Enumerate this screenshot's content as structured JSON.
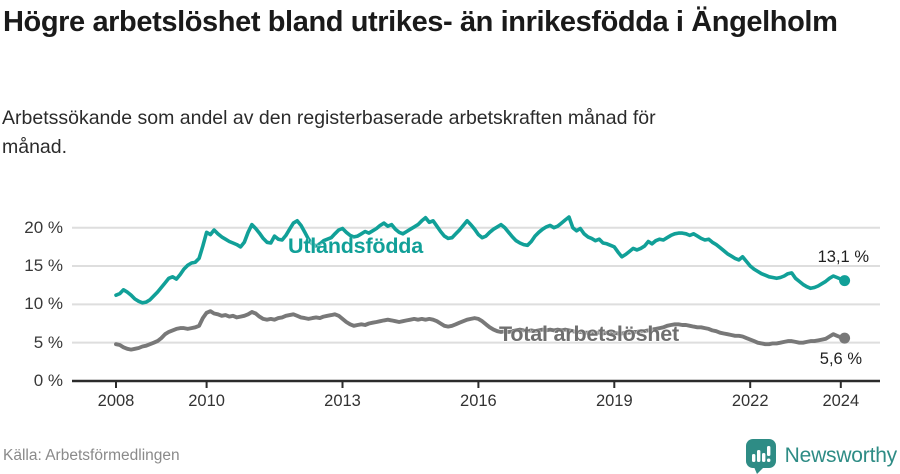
{
  "header": {
    "title": "Högre arbetslöshet bland utrikes- än inrikesfödda i Ängelholm",
    "subtitle": "Arbetssökande som andel av den registerbaserade arbetskraften månad för månad."
  },
  "footer": {
    "source": "Källa: Arbetsförmedlingen",
    "brand": "Newsworthy"
  },
  "colors": {
    "accent_teal": "#11a098",
    "line_gray": "#787878",
    "series_label_gray": "#6f6f6f",
    "brand_teal": "#2e8c85",
    "grid": "#dedede",
    "axis": "#2b2b2b",
    "end_label_text": "#1f1f1f"
  },
  "chart_data": {
    "type": "line",
    "x_start_year": 2008,
    "x_interval": "month",
    "x_end_label": "2024",
    "grid": "horizontal",
    "legend_position": "inline-labels",
    "ylim": [
      0,
      22.5
    ],
    "y_tick_suffix": " %",
    "x_ticks": [
      {
        "year": 2008,
        "label": "2008"
      },
      {
        "year": 2010,
        "label": "2010"
      },
      {
        "year": 2013,
        "label": "2013"
      },
      {
        "year": 2016,
        "label": "2016"
      },
      {
        "year": 2019,
        "label": "2019"
      },
      {
        "year": 2022,
        "label": "2022"
      },
      {
        "year": 2024,
        "label": "2024"
      }
    ],
    "y_ticks": [
      {
        "value": 0,
        "label": "0 %"
      },
      {
        "value": 5,
        "label": "5 %"
      },
      {
        "value": 10,
        "label": "10 %"
      },
      {
        "value": 15,
        "label": "15 %"
      },
      {
        "value": 20,
        "label": "20 %"
      }
    ],
    "series": [
      {
        "name": "Utlandsfödda",
        "color": "#11a098",
        "end_label": "13,1 %",
        "latest_value": 13.1,
        "values": [
          11.2,
          11.4,
          11.9,
          11.6,
          11.2,
          10.7,
          10.4,
          10.2,
          10.3,
          10.6,
          11.1,
          11.6,
          12.2,
          12.8,
          13.4,
          13.6,
          13.3,
          13.9,
          14.6,
          15.1,
          15.4,
          15.5,
          16.0,
          17.6,
          19.4,
          19.1,
          19.7,
          19.2,
          18.8,
          18.5,
          18.2,
          18.0,
          17.8,
          17.5,
          18.1,
          19.4,
          20.4,
          19.9,
          19.3,
          18.6,
          18.1,
          18.0,
          18.9,
          18.5,
          18.4,
          19.0,
          19.8,
          20.6,
          20.9,
          20.3,
          19.4,
          18.5,
          17.9,
          17.6,
          17.9,
          18.3,
          18.5,
          18.7,
          19.2,
          19.7,
          19.9,
          19.4,
          19.0,
          18.8,
          18.9,
          19.2,
          19.5,
          19.3,
          19.6,
          19.9,
          20.3,
          20.6,
          20.2,
          20.4,
          19.8,
          19.4,
          19.2,
          19.5,
          19.8,
          20.1,
          20.4,
          20.9,
          21.3,
          20.7,
          20.9,
          20.2,
          19.5,
          18.9,
          18.6,
          18.7,
          19.2,
          19.7,
          20.3,
          20.9,
          20.4,
          19.8,
          19.1,
          18.7,
          18.9,
          19.4,
          19.8,
          20.1,
          20.4,
          20.0,
          19.4,
          18.8,
          18.3,
          18.0,
          17.8,
          17.7,
          18.2,
          18.9,
          19.4,
          19.8,
          20.1,
          20.3,
          20.0,
          20.2,
          20.6,
          21.0,
          21.4,
          20.0,
          19.6,
          19.9,
          19.2,
          18.8,
          18.6,
          18.3,
          18.5,
          18.0,
          17.9,
          17.7,
          17.5,
          16.8,
          16.2,
          16.5,
          16.9,
          17.3,
          17.1,
          17.3,
          17.6,
          18.2,
          17.9,
          18.3,
          18.5,
          18.4,
          18.7,
          19.0,
          19.2,
          19.3,
          19.3,
          19.2,
          19.0,
          19.2,
          18.9,
          18.6,
          18.4,
          18.5,
          18.1,
          17.8,
          17.4,
          17.0,
          16.6,
          16.3,
          16.0,
          15.8,
          16.2,
          15.6,
          15.0,
          14.6,
          14.3,
          14.0,
          13.8,
          13.6,
          13.5,
          13.4,
          13.5,
          13.7,
          14.0,
          14.1,
          13.4,
          13.0,
          12.6,
          12.3,
          12.1,
          12.2,
          12.4,
          12.7,
          13.0,
          13.4,
          13.7,
          13.5,
          13.3,
          13.1
        ]
      },
      {
        "name": "Total arbetslöshet",
        "color": "#787878",
        "end_label": "5,6 %",
        "latest_value": 5.6,
        "values": [
          4.8,
          4.7,
          4.4,
          4.2,
          4.1,
          4.2,
          4.3,
          4.5,
          4.6,
          4.8,
          5.0,
          5.2,
          5.6,
          6.1,
          6.4,
          6.6,
          6.8,
          6.9,
          6.9,
          6.8,
          6.9,
          7.0,
          7.2,
          8.2,
          8.9,
          9.1,
          8.8,
          8.7,
          8.5,
          8.6,
          8.4,
          8.5,
          8.3,
          8.4,
          8.5,
          8.7,
          9.0,
          8.8,
          8.4,
          8.1,
          8.0,
          8.1,
          8.0,
          8.2,
          8.3,
          8.5,
          8.6,
          8.7,
          8.5,
          8.3,
          8.2,
          8.1,
          8.2,
          8.3,
          8.2,
          8.4,
          8.5,
          8.6,
          8.7,
          8.5,
          8.1,
          7.7,
          7.4,
          7.2,
          7.3,
          7.4,
          7.3,
          7.5,
          7.6,
          7.7,
          7.8,
          7.9,
          8.0,
          7.9,
          7.8,
          7.7,
          7.8,
          7.9,
          8.0,
          8.1,
          8.0,
          8.1,
          8.0,
          8.1,
          8.0,
          7.8,
          7.5,
          7.2,
          7.1,
          7.2,
          7.4,
          7.6,
          7.8,
          8.0,
          8.1,
          8.2,
          8.1,
          7.8,
          7.4,
          7.0,
          6.7,
          6.5,
          6.4,
          6.5,
          6.4,
          6.5,
          6.6,
          6.7,
          6.6,
          6.5,
          6.6,
          6.5,
          6.6,
          6.7,
          6.6,
          6.7,
          6.6,
          6.7,
          6.6,
          6.7,
          6.6,
          6.5,
          6.4,
          6.4,
          6.3,
          6.3,
          6.4,
          6.3,
          6.3,
          6.2,
          6.3,
          6.4,
          6.3,
          6.2,
          6.2,
          6.3,
          6.3,
          6.4,
          6.4,
          6.5,
          6.5,
          6.6,
          6.7,
          6.8,
          6.9,
          7.0,
          7.2,
          7.3,
          7.4,
          7.4,
          7.3,
          7.3,
          7.2,
          7.1,
          7.0,
          7.0,
          6.9,
          6.8,
          6.6,
          6.5,
          6.3,
          6.2,
          6.1,
          6.0,
          5.9,
          5.9,
          5.8,
          5.6,
          5.4,
          5.2,
          5.0,
          4.9,
          4.8,
          4.8,
          4.9,
          4.9,
          5.0,
          5.1,
          5.2,
          5.2,
          5.1,
          5.0,
          5.0,
          5.1,
          5.2,
          5.2,
          5.3,
          5.4,
          5.5,
          5.8,
          6.1,
          5.9,
          5.7,
          5.6
        ]
      }
    ]
  }
}
